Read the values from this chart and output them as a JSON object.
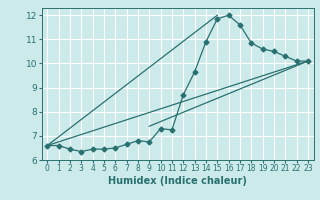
{
  "xlabel": "Humidex (Indice chaleur)",
  "xlim": [
    -0.5,
    23.5
  ],
  "ylim": [
    6,
    12.3
  ],
  "xticks": [
    0,
    1,
    2,
    3,
    4,
    5,
    6,
    7,
    8,
    9,
    10,
    11,
    12,
    13,
    14,
    15,
    16,
    17,
    18,
    19,
    20,
    21,
    22,
    23
  ],
  "yticks": [
    6,
    7,
    8,
    9,
    10,
    11,
    12
  ],
  "bg_color": "#cceaea",
  "grid_color": "#b0d8d8",
  "line_color": "#2a7070",
  "series1_x": [
    0,
    1,
    2,
    3,
    4,
    5,
    6,
    7,
    8,
    9,
    10,
    11,
    12,
    13,
    14,
    15,
    16,
    17,
    18,
    19,
    20,
    21,
    22,
    23
  ],
  "series1_y": [
    6.6,
    6.6,
    6.45,
    6.35,
    6.45,
    6.45,
    6.5,
    6.65,
    6.8,
    6.75,
    7.3,
    7.25,
    8.7,
    9.65,
    10.9,
    11.85,
    12.0,
    11.6,
    10.85,
    10.6,
    10.5,
    10.3,
    10.1,
    10.1
  ],
  "series2_x": [
    0,
    23
  ],
  "series2_y": [
    6.6,
    10.1
  ],
  "series3_x": [
    9,
    23
  ],
  "series3_y": [
    7.4,
    10.1
  ],
  "series4_x": [
    0,
    15
  ],
  "series4_y": [
    6.6,
    12.0
  ]
}
